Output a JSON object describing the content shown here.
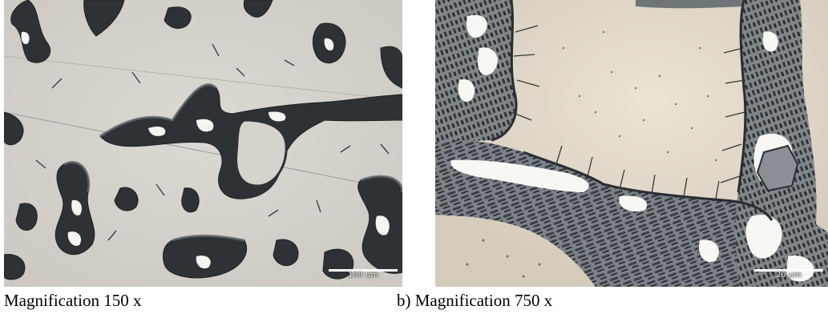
{
  "figure": {
    "panel_a": {
      "caption": "Magnification 150 x",
      "scale_bar_label": "100 um"
    },
    "panel_b": {
      "caption": "b) Magnification 750 x",
      "scale_bar_label": "20 um"
    }
  },
  "colors": {
    "matrix_a": "#d6d2cc",
    "matrix_b": "#e2d9cb",
    "phase_dark": "#2b2f33",
    "phase_mid": "#6d7377",
    "phase_white": "#f6f6f3",
    "particle_grey": "#8a9096"
  }
}
